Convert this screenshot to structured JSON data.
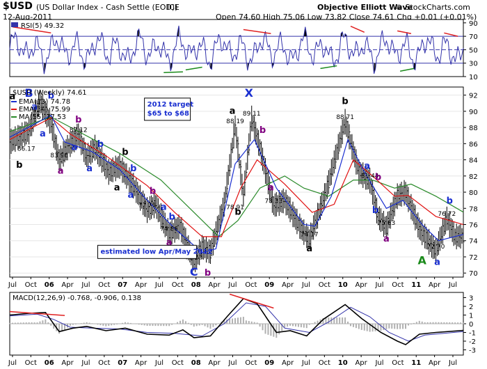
{
  "header": {
    "symbol": "$USD",
    "name": "(US Dollar Index - Cash Settle (EOD))",
    "exchange": "ICE",
    "date": "12-Aug-2011",
    "ohlc": "Open 74.60   High 75.06   Low 73.82   Close 74.61   Chg +0.01 (+0.01%)",
    "publisher": "Objective Elliott Wave",
    "credit": "© StockCharts.com"
  },
  "chart_data": [
    {
      "type": "line",
      "panel": "rsi",
      "indicator_label": "RSI(5) 49.32",
      "y_ticks": [
        10,
        30,
        50,
        70,
        90
      ],
      "ylim": [
        10,
        95
      ],
      "overbought": 70,
      "oversold": 30,
      "centerline": 50,
      "colors": {
        "line": "#3333aa",
        "extreme_fill": "#000000",
        "bearish_div": "#e02020",
        "bullish_div": "#1a8a1a"
      }
    },
    {
      "type": "line",
      "panel": "price",
      "title": "$USD (Weekly) 74.61",
      "legend": [
        {
          "name": "EMA(13) 74.78",
          "color": "#1a2fd0"
        },
        {
          "name": "EMA(34) 75.99",
          "color": "#e01010"
        },
        {
          "name": "MA(55) 77.53",
          "color": "#2a8a2a"
        }
      ],
      "x_ticks": [
        "Jul",
        "Oct",
        "06",
        "Apr",
        "Jul",
        "Oct",
        "07",
        "Apr",
        "Jul",
        "Oct",
        "08",
        "Apr",
        "Jul",
        "Oct",
        "09",
        "Apr",
        "Jul",
        "Oct",
        "10",
        "Apr",
        "Jul",
        "Oct",
        "11",
        "Apr",
        "Jul"
      ],
      "y_ticks": [
        70,
        72,
        74,
        76,
        78,
        80,
        82,
        84,
        86,
        88,
        90,
        92
      ],
      "ylim": [
        69.5,
        93
      ],
      "x_range_weeks": [
        0,
        330
      ],
      "price_path": [
        [
          0,
          86.2
        ],
        [
          14,
          87.5
        ],
        [
          22,
          91.2
        ],
        [
          30,
          88.5
        ],
        [
          36,
          83.96
        ],
        [
          42,
          85.5
        ],
        [
          50,
          87.12
        ],
        [
          56,
          84.3
        ],
        [
          62,
          85.5
        ],
        [
          72,
          82.5
        ],
        [
          80,
          83.2
        ],
        [
          90,
          80.8
        ],
        [
          100,
          77.79
        ],
        [
          106,
          78.5
        ],
        [
          116,
          74.86
        ],
        [
          124,
          75.8
        ],
        [
          134,
          71.33
        ],
        [
          140,
          73.2
        ],
        [
          146,
          72.6
        ],
        [
          156,
          78.5
        ],
        [
          164,
          88.19
        ],
        [
          170,
          79.5
        ],
        [
          176,
          89.11
        ],
        [
          182,
          85.5
        ],
        [
          192,
          78.33
        ],
        [
          200,
          79.0
        ],
        [
          212,
          75.5
        ],
        [
          218,
          74.17
        ],
        [
          230,
          80.0
        ],
        [
          244,
          88.71
        ],
        [
          254,
          82.5
        ],
        [
          262,
          81.44
        ],
        [
          268,
          77.0
        ],
        [
          274,
          75.63
        ],
        [
          282,
          79.5
        ],
        [
          288,
          80.0
        ],
        [
          298,
          75.5
        ],
        [
          310,
          72.7
        ],
        [
          318,
          76.72
        ],
        [
          324,
          74.5
        ],
        [
          330,
          74.61
        ]
      ],
      "ema13": [
        [
          0,
          86.8
        ],
        [
          30,
          89.5
        ],
        [
          40,
          86.2
        ],
        [
          60,
          85.0
        ],
        [
          80,
          82.8
        ],
        [
          100,
          79.0
        ],
        [
          120,
          75.5
        ],
        [
          140,
          72.5
        ],
        [
          150,
          73.0
        ],
        [
          164,
          83.5
        ],
        [
          178,
          86.5
        ],
        [
          194,
          80.5
        ],
        [
          214,
          76.0
        ],
        [
          222,
          75.8
        ],
        [
          234,
          79.5
        ],
        [
          246,
          86.5
        ],
        [
          258,
          82.5
        ],
        [
          274,
          78.0
        ],
        [
          286,
          79.0
        ],
        [
          300,
          76.0
        ],
        [
          312,
          74.0
        ],
        [
          330,
          74.78
        ]
      ],
      "ema34": [
        [
          0,
          86.5
        ],
        [
          30,
          89.2
        ],
        [
          44,
          87.2
        ],
        [
          70,
          84.5
        ],
        [
          100,
          80.8
        ],
        [
          120,
          77.5
        ],
        [
          140,
          74.5
        ],
        [
          154,
          74.5
        ],
        [
          168,
          80.5
        ],
        [
          180,
          84.0
        ],
        [
          200,
          81.0
        ],
        [
          220,
          77.5
        ],
        [
          236,
          78.5
        ],
        [
          250,
          84.0
        ],
        [
          264,
          82.0
        ],
        [
          280,
          79.5
        ],
        [
          290,
          79.6
        ],
        [
          310,
          77.0
        ],
        [
          330,
          75.99
        ]
      ],
      "ma55": [
        [
          0,
          87.5
        ],
        [
          30,
          89.3
        ],
        [
          50,
          87.5
        ],
        [
          80,
          84.8
        ],
        [
          110,
          81.5
        ],
        [
          134,
          77.5
        ],
        [
          152,
          74.5
        ],
        [
          166,
          76.5
        ],
        [
          182,
          80.5
        ],
        [
          200,
          82.0
        ],
        [
          214,
          80.5
        ],
        [
          232,
          79.5
        ],
        [
          250,
          81.5
        ],
        [
          264,
          81.5
        ],
        [
          280,
          80.5
        ],
        [
          292,
          81.0
        ],
        [
          310,
          79.5
        ],
        [
          330,
          77.53
        ]
      ],
      "price_labels": [
        {
          "text": "86.17",
          "x": 12,
          "y": 86.17
        },
        {
          "text": "83.96",
          "x": 36,
          "y": 83.96
        },
        {
          "text": "87.12",
          "x": 50,
          "y": 87.12
        },
        {
          "text": "77.79",
          "x": 100,
          "y": 77.79
        },
        {
          "text": "74.86",
          "x": 116,
          "y": 74.86
        },
        {
          "text": "71.33",
          "x": 134,
          "y": 71.33
        },
        {
          "text": "88.19",
          "x": 164,
          "y": 88.19
        },
        {
          "text": "89.11",
          "x": 176,
          "y": 89.11
        },
        {
          "text": "78.91",
          "x": 164,
          "y": 78.91
        },
        {
          "text": "78.33",
          "x": 192,
          "y": 78.33
        },
        {
          "text": "74.17",
          "x": 218,
          "y": 74.17
        },
        {
          "text": "88.71",
          "x": 244,
          "y": 88.71
        },
        {
          "text": "81.44",
          "x": 262,
          "y": 81.44
        },
        {
          "text": "75.63",
          "x": 274,
          "y": 75.63
        },
        {
          "text": "72.70",
          "x": 310,
          "y": 72.7
        },
        {
          "text": "76.72",
          "x": 318,
          "y": 76.72
        }
      ],
      "wave_labels": [
        {
          "text": "B",
          "x": 14,
          "y": 94.2,
          "color": "#1a2fd0"
        },
        {
          "text": "a",
          "x": 2,
          "y": 91.5,
          "color": "#000000"
        },
        {
          "text": "b",
          "x": 7,
          "y": 83.0,
          "color": "#000000"
        },
        {
          "text": "a",
          "x": 18,
          "y": 90.2,
          "color": "#1a2fd0"
        },
        {
          "text": "b",
          "x": 30,
          "y": 91.6,
          "color": "#1a2fd0"
        },
        {
          "text": "a",
          "x": 24,
          "y": 86.9,
          "color": "#1a2fd0"
        },
        {
          "text": "a",
          "x": 37,
          "y": 82.3,
          "color": "#800080"
        },
        {
          "text": "b",
          "x": 50,
          "y": 88.6,
          "color": "#800080"
        },
        {
          "text": "a",
          "x": 47,
          "y": 85.2,
          "color": "#1a2fd0"
        },
        {
          "text": "b",
          "x": 66,
          "y": 85.6,
          "color": "#1a2fd0"
        },
        {
          "text": "a",
          "x": 58,
          "y": 82.6,
          "color": "#1a2fd0"
        },
        {
          "text": "b",
          "x": 84,
          "y": 84.6,
          "color": "#000000"
        },
        {
          "text": "b",
          "x": 90,
          "y": 82.6,
          "color": "#1a2fd0"
        },
        {
          "text": "a",
          "x": 78,
          "y": 80.2,
          "color": "#000000"
        },
        {
          "text": "a",
          "x": 88,
          "y": 79.3,
          "color": "#1a2fd0"
        },
        {
          "text": "b",
          "x": 104,
          "y": 79.8,
          "color": "#800080"
        },
        {
          "text": "a",
          "x": 112,
          "y": 77.8,
          "color": "#1a2fd0"
        },
        {
          "text": "b",
          "x": 118,
          "y": 76.6,
          "color": "#1a2fd0"
        },
        {
          "text": "a",
          "x": 116,
          "y": 73.4,
          "color": "#800080"
        },
        {
          "text": "C",
          "x": 134,
          "y": 69.1,
          "color": "#1a2fd0"
        },
        {
          "text": "b",
          "x": 144,
          "y": 69.6,
          "color": "#800080"
        },
        {
          "text": "a",
          "x": 162,
          "y": 89.7,
          "color": "#000000"
        },
        {
          "text": "b",
          "x": 166,
          "y": 77.2,
          "color": "#000000"
        },
        {
          "text": "X",
          "x": 174,
          "y": 91.9,
          "color": "#1a2fd0"
        },
        {
          "text": "b",
          "x": 184,
          "y": 87.3,
          "color": "#800080"
        },
        {
          "text": "a",
          "x": 190,
          "y": 80.2,
          "color": "#800080"
        },
        {
          "text": "a",
          "x": 218,
          "y": 72.7,
          "color": "#000000"
        },
        {
          "text": "b",
          "x": 244,
          "y": 90.9,
          "color": "#000000"
        },
        {
          "text": "a",
          "x": 260,
          "y": 82.9,
          "color": "#1a2fd0"
        },
        {
          "text": "b",
          "x": 268,
          "y": 81.5,
          "color": "#800080"
        },
        {
          "text": "b",
          "x": 266,
          "y": 77.4,
          "color": "#1a2fd0"
        },
        {
          "text": "a",
          "x": 274,
          "y": 73.9,
          "color": "#800080"
        },
        {
          "text": "A",
          "x": 300,
          "y": 71.1,
          "color": "#1a8a1a"
        },
        {
          "text": "a",
          "x": 311,
          "y": 71.0,
          "color": "#1a2fd0"
        },
        {
          "text": "b",
          "x": 320,
          "y": 78.6,
          "color": "#1a2fd0"
        }
      ],
      "annotations": [
        {
          "text_lines": [
            "2012 target",
            "$65 to $68"
          ],
          "x": 98,
          "y": 90.6,
          "color": "#1a2fd0"
        },
        {
          "text_lines": [
            "estimated low Apr/May 2012"
          ],
          "x": 64,
          "y": 72.4,
          "color": "#1a2fd0"
        }
      ]
    },
    {
      "type": "line",
      "panel": "macd",
      "indicator_label": "MACD(12,26,9) -0.768, -0.906, 0.138",
      "y_ticks": [
        -3,
        -2,
        -1,
        0,
        1,
        2,
        3
      ],
      "ylim": [
        -3.6,
        3.6
      ],
      "x_ticks": [
        "Jul",
        "Oct",
        "06",
        "Apr",
        "Jul",
        "Oct",
        "07",
        "Apr",
        "Jul",
        "Oct",
        "08",
        "Apr",
        "Jul",
        "Oct",
        "09",
        "Apr",
        "Jul",
        "Oct",
        "10",
        "Apr",
        "Jul",
        "Oct",
        "11",
        "Apr",
        "Jul"
      ],
      "macd": [
        [
          0,
          1.0
        ],
        [
          14,
          1.2
        ],
        [
          26,
          1.3
        ],
        [
          36,
          -0.9
        ],
        [
          46,
          -0.5
        ],
        [
          56,
          -0.3
        ],
        [
          70,
          -0.8
        ],
        [
          84,
          -0.5
        ],
        [
          100,
          -1.2
        ],
        [
          116,
          -1.3
        ],
        [
          126,
          -0.7
        ],
        [
          134,
          -1.6
        ],
        [
          146,
          -1.4
        ],
        [
          158,
          0.8
        ],
        [
          170,
          2.9
        ],
        [
          180,
          2.3
        ],
        [
          194,
          -1.0
        ],
        [
          204,
          -0.8
        ],
        [
          216,
          -1.4
        ],
        [
          228,
          0.5
        ],
        [
          244,
          2.2
        ],
        [
          256,
          0.6
        ],
        [
          270,
          -1.0
        ],
        [
          282,
          -2.0
        ],
        [
          288,
          -2.4
        ],
        [
          298,
          -1.2
        ],
        [
          310,
          -1.0
        ],
        [
          330,
          -0.768
        ]
      ],
      "signal": [
        [
          0,
          0.9
        ],
        [
          20,
          1.1
        ],
        [
          32,
          0.5
        ],
        [
          44,
          -0.4
        ],
        [
          60,
          -0.5
        ],
        [
          80,
          -0.6
        ],
        [
          100,
          -1.0
        ],
        [
          120,
          -1.1
        ],
        [
          140,
          -1.4
        ],
        [
          156,
          0.0
        ],
        [
          172,
          2.4
        ],
        [
          186,
          2.0
        ],
        [
          200,
          -0.5
        ],
        [
          218,
          -1.0
        ],
        [
          232,
          0.2
        ],
        [
          248,
          1.9
        ],
        [
          262,
          0.8
        ],
        [
          276,
          -1.0
        ],
        [
          290,
          -2.0
        ],
        [
          302,
          -1.3
        ],
        [
          316,
          -1.1
        ],
        [
          330,
          -0.906
        ]
      ],
      "divergence_line": [
        [
          160,
          3.4
        ],
        [
          192,
          1.8
        ]
      ],
      "left_divergence_line": [
        [
          0,
          1.4
        ],
        [
          40,
          0.95
        ]
      ]
    }
  ]
}
